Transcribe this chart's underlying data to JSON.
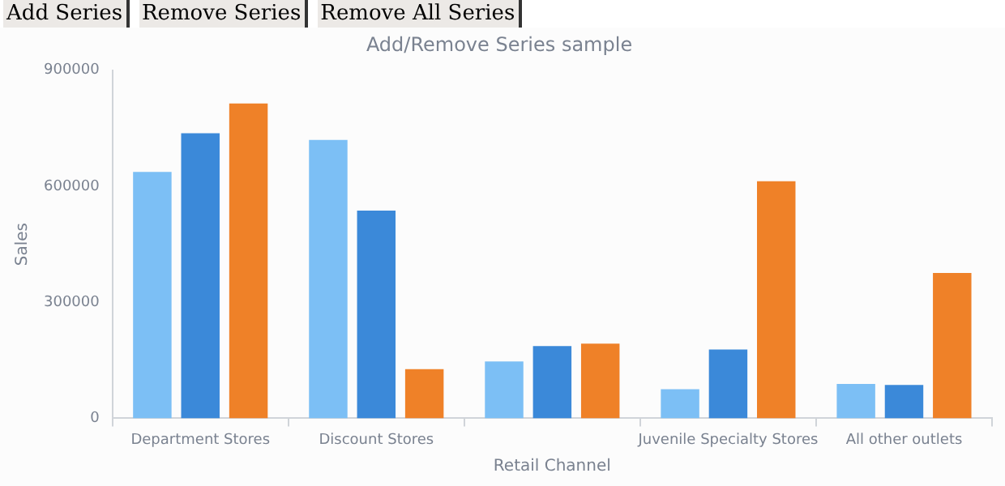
{
  "chart_data": {
    "type": "bar",
    "title": "Add/Remove Series sample",
    "xlabel": "Retail Channel",
    "ylabel": "Sales",
    "annotations": [
      "Add Series",
      "Remove Series",
      "Remove All Series"
    ],
    "categories": [
      "Department Stores",
      "Discount Stores",
      null,
      "Juvenile Specialty Stores",
      "All other outlets"
    ],
    "series": [
      {
        "color": "#7cbff5",
        "values": [
          637000,
          720000,
          147000,
          75000,
          89000
        ]
      },
      {
        "color": "#3b89d9",
        "values": [
          737000,
          537000,
          187000,
          178000,
          86000
        ]
      },
      {
        "color": "#ef8128",
        "values": [
          814000,
          127000,
          193000,
          613000,
          376000
        ]
      }
    ],
    "ylim": [
      0,
      900000
    ],
    "yticks": [
      0,
      300000,
      600000,
      900000
    ],
    "grid": false,
    "legend": false
  }
}
